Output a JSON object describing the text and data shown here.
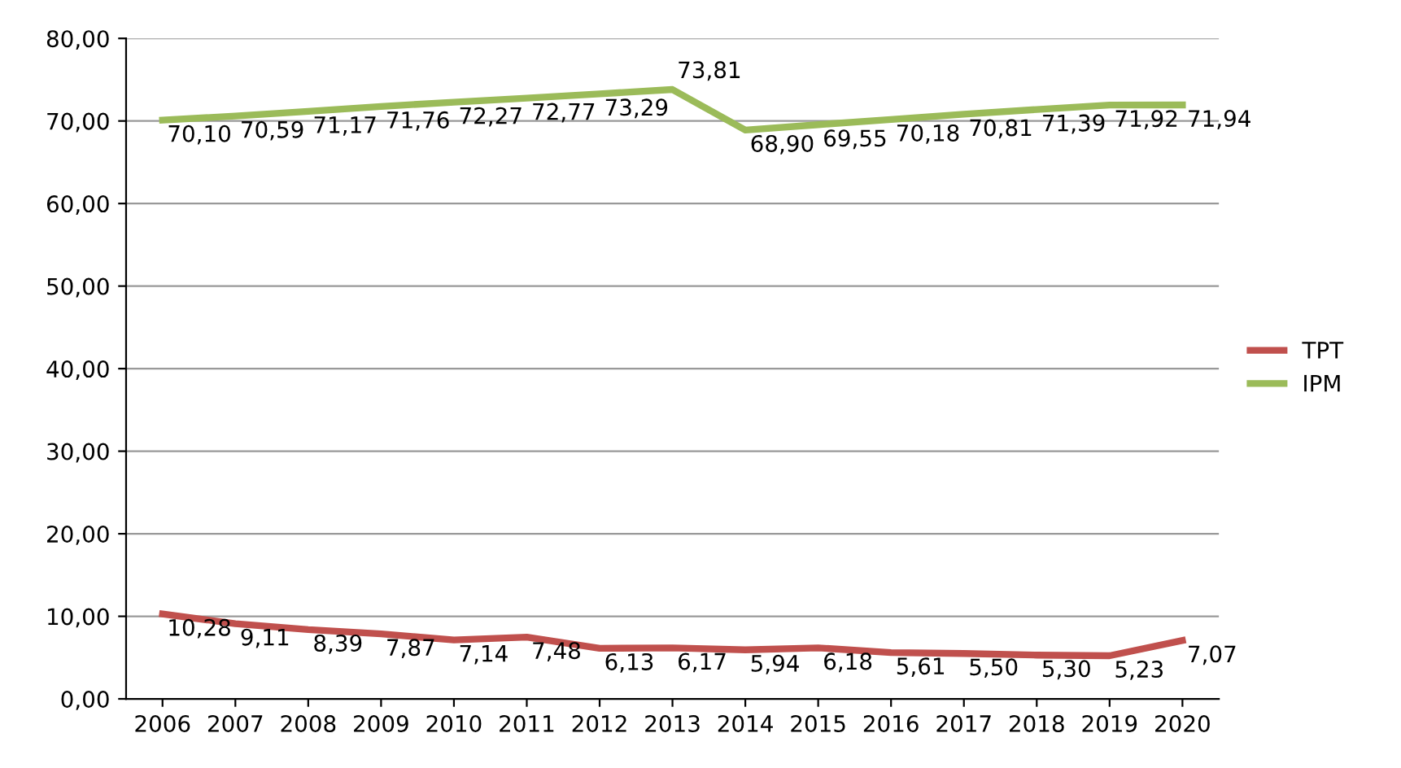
{
  "chart_data": {
    "type": "line",
    "categories": [
      "2006",
      "2007",
      "2008",
      "2009",
      "2010",
      "2011",
      "2012",
      "2013",
      "2014",
      "2015",
      "2016",
      "2017",
      "2018",
      "2019",
      "2020"
    ],
    "series": [
      {
        "name": "TPT",
        "color": "#c0504d",
        "values": [
          10.28,
          9.11,
          8.39,
          7.87,
          7.14,
          7.48,
          6.13,
          6.17,
          5.94,
          6.18,
          5.61,
          5.5,
          5.3,
          5.23,
          7.07
        ],
        "value_labels": [
          "10,28",
          "9,11",
          "8,39",
          "7,87",
          "7,14",
          "7,48",
          "6,13",
          "6,17",
          "5,94",
          "6,18",
          "5,61",
          "5,50",
          "5,30",
          "5,23",
          "7,07"
        ]
      },
      {
        "name": "IPM",
        "color": "#9bbb59",
        "values": [
          70.1,
          70.59,
          71.17,
          71.76,
          72.27,
          72.77,
          73.29,
          73.81,
          68.9,
          69.55,
          70.18,
          70.81,
          71.39,
          71.92,
          71.94
        ],
        "value_labels": [
          "70,10",
          "70,59",
          "71,17",
          "71,76",
          "72,27",
          "72,77",
          "73,29",
          "73,81",
          "68,90",
          "69,55",
          "70,18",
          "70,81",
          "71,39",
          "71,92",
          "71,94"
        ]
      }
    ],
    "ylim": [
      0,
      80
    ],
    "yticks": [
      {
        "value": 0,
        "label": "0,00"
      },
      {
        "value": 10,
        "label": "10,00"
      },
      {
        "value": 20,
        "label": "20,00"
      },
      {
        "value": 30,
        "label": "30,00"
      },
      {
        "value": 40,
        "label": "40,00"
      },
      {
        "value": 50,
        "label": "50,00"
      },
      {
        "value": 60,
        "label": "60,00"
      },
      {
        "value": 70,
        "label": "70,00"
      },
      {
        "value": 80,
        "label": "80,00"
      }
    ],
    "grid": "y",
    "legend": "right",
    "marker": "none",
    "line_style": "solid"
  }
}
